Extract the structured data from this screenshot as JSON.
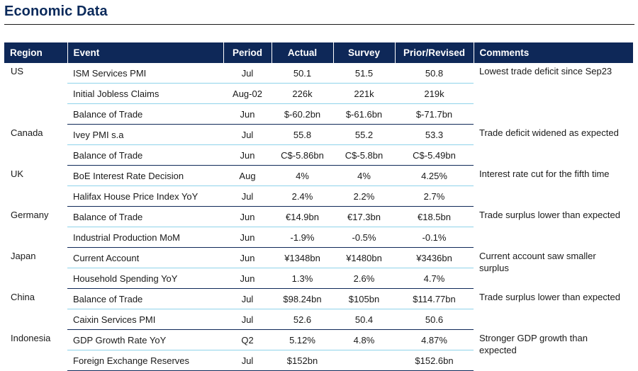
{
  "title": "Economic Data",
  "colors": {
    "header_bg": "#0e2858",
    "title": "#0b2a5b",
    "inner_rule": "#8fd3ea",
    "group_rule": "#0e2858"
  },
  "columns": [
    "Region",
    "Event",
    "Period",
    "Actual",
    "Survey",
    "Prior/Revised",
    "Comments"
  ],
  "groups": [
    {
      "region": "US",
      "comment": "Lowest trade deficit since Sep23",
      "rows": [
        {
          "event": "ISM Services PMI",
          "period": "Jul",
          "actual": "50.1",
          "survey": "51.5",
          "prior": "50.8"
        },
        {
          "event": "Initial Jobless Claims",
          "period": "Aug-02",
          "actual": "226k",
          "survey": "221k",
          "prior": "219k"
        },
        {
          "event": "Balance of Trade",
          "period": "Jun",
          "actual": "$-60.2bn",
          "survey": "$-61.6bn",
          "prior": "$-71.7bn"
        }
      ]
    },
    {
      "region": "Canada",
      "comment": "Trade deficit widened as expected",
      "rows": [
        {
          "event": "Ivey PMI s.a",
          "period": "Jul",
          "actual": "55.8",
          "survey": "55.2",
          "prior": "53.3"
        },
        {
          "event": "Balance of Trade",
          "period": "Jun",
          "actual": "C$-5.86bn",
          "survey": "C$-5.8bn",
          "prior": "C$-5.49bn"
        }
      ]
    },
    {
      "region": "UK",
      "comment": "Interest rate cut for the fifth time",
      "rows": [
        {
          "event": "BoE Interest Rate Decision",
          "period": "Aug",
          "actual": "4%",
          "survey": "4%",
          "prior": "4.25%"
        },
        {
          "event": "Halifax House Price Index YoY",
          "period": "Jul",
          "actual": "2.4%",
          "survey": "2.2%",
          "prior": "2.7%"
        }
      ]
    },
    {
      "region": "Germany",
      "comment": "Trade surplus lower than expected",
      "rows": [
        {
          "event": "Balance of Trade",
          "period": "Jun",
          "actual": "€14.9bn",
          "survey": "€17.3bn",
          "prior": "€18.5bn"
        },
        {
          "event": "Industrial Production MoM",
          "period": "Jun",
          "actual": "-1.9%",
          "survey": "-0.5%",
          "prior": "-0.1%"
        }
      ]
    },
    {
      "region": "Japan",
      "comment": "Current account saw smaller surplus",
      "rows": [
        {
          "event": "Current Account",
          "period": "Jun",
          "actual": "¥1348bn",
          "survey": "¥1480bn",
          "prior": "¥3436bn"
        },
        {
          "event": "Household Spending YoY",
          "period": "Jun",
          "actual": "1.3%",
          "survey": "2.6%",
          "prior": "4.7%"
        }
      ]
    },
    {
      "region": "China",
      "comment": "Trade surplus lower than expected",
      "rows": [
        {
          "event": "Balance of Trade",
          "period": "Jul",
          "actual": "$98.24bn",
          "survey": "$105bn",
          "prior": "$114.77bn"
        },
        {
          "event": "Caixin Services PMI",
          "period": "Jul",
          "actual": "52.6",
          "survey": "50.4",
          "prior": "50.6"
        }
      ]
    },
    {
      "region": "Indonesia",
      "comment": "Stronger GDP growth than expected",
      "rows": [
        {
          "event": "GDP Growth Rate YoY",
          "period": "Q2",
          "actual": "5.12%",
          "survey": "4.8%",
          "prior": "4.87%"
        },
        {
          "event": "Foreign Exchange Reserves",
          "period": "Jul",
          "actual": "$152bn",
          "survey": "",
          "prior": "$152.6bn"
        }
      ]
    }
  ]
}
